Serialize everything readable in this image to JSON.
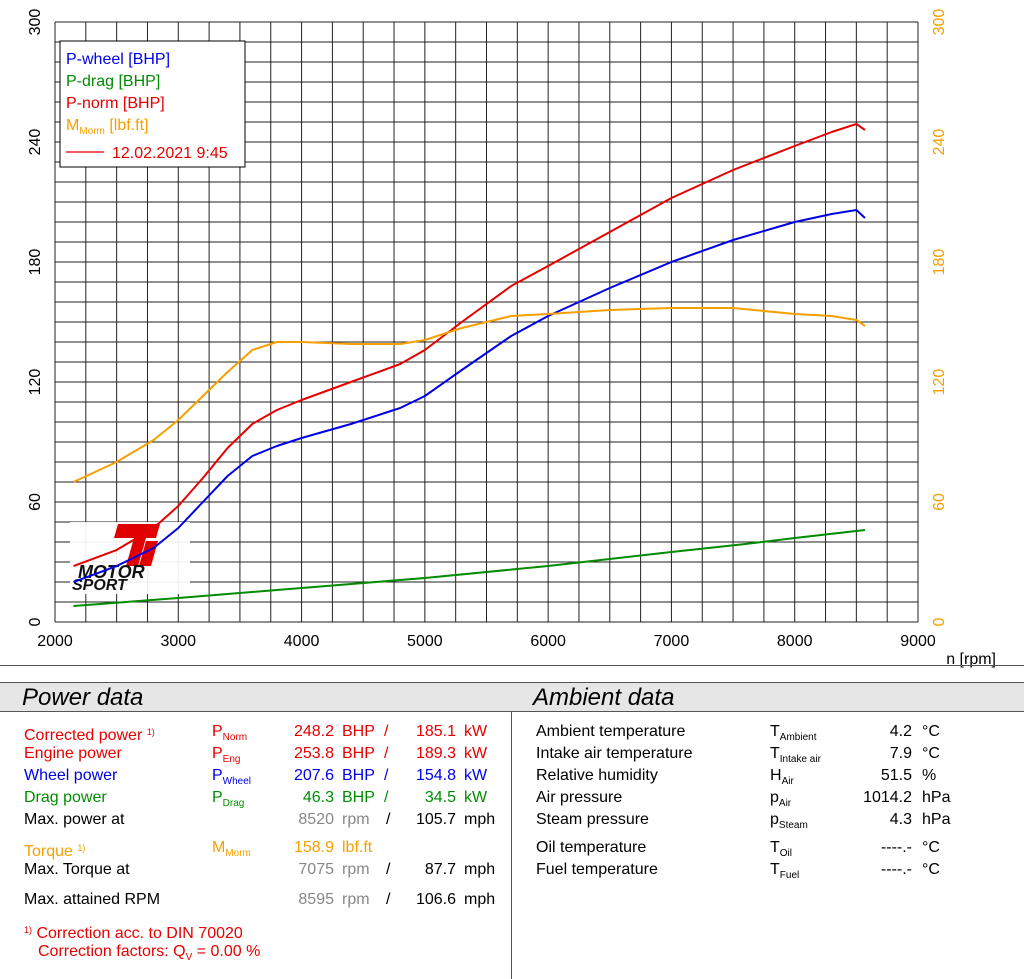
{
  "colors": {
    "wheel": "#0000e6",
    "drag": "#008c00",
    "norm": "#e60000",
    "torque": "#f5a000",
    "gray": "#888888"
  },
  "chart_data": {
    "type": "line",
    "xlabel": "n [rpm]",
    "x_ticks": [
      "2000",
      "3000",
      "4000",
      "5000",
      "6000",
      "7000",
      "8000",
      "9000"
    ],
    "y_left_ticks": [
      "0",
      "60",
      "120",
      "180",
      "240",
      "300"
    ],
    "y_right_ticks": [
      "0",
      "60",
      "120",
      "180",
      "240",
      "300"
    ],
    "xlim": [
      2000,
      9000
    ],
    "ylim": [
      0,
      300
    ],
    "grid": true,
    "legend_position": "top-left",
    "legend": {
      "wheel": "P-wheel [BHP]",
      "drag": "P-drag [BHP]",
      "norm": "P-norm [BHP]",
      "torque_main": "M",
      "torque_sub": "Morm",
      "torque_unit": " [lbf.ft]",
      "date": "12.02.2021 9:45"
    },
    "series": [
      {
        "key": "norm",
        "name": "P-norm [BHP]",
        "x": [
          2150,
          2500,
          2800,
          3000,
          3200,
          3400,
          3600,
          3800,
          4000,
          4400,
          4800,
          5000,
          5300,
          5700,
          6000,
          6500,
          7000,
          7500,
          8000,
          8300,
          8500,
          8570
        ],
        "values": [
          28,
          36,
          47,
          58,
          72,
          87,
          99,
          106,
          111,
          120,
          129,
          136,
          150,
          168,
          178,
          195,
          212,
          226,
          238,
          245,
          249,
          246
        ]
      },
      {
        "key": "wheel",
        "name": "P-wheel [BHP]",
        "x": [
          2150,
          2500,
          2800,
          3000,
          3200,
          3400,
          3600,
          3800,
          4000,
          4400,
          4800,
          5000,
          5300,
          5700,
          6000,
          6500,
          7000,
          7500,
          8000,
          8300,
          8500,
          8570
        ],
        "values": [
          20,
          28,
          37,
          47,
          60,
          73,
          83,
          88,
          92,
          99,
          107,
          113,
          126,
          143,
          153,
          167,
          180,
          191,
          200,
          204,
          206,
          202
        ]
      },
      {
        "key": "drag",
        "name": "P-drag [BHP]",
        "x": [
          2150,
          3000,
          4000,
          5000,
          6000,
          7000,
          7600,
          8000,
          8570
        ],
        "values": [
          8,
          12,
          17,
          22,
          28,
          35,
          39,
          42,
          46
        ]
      },
      {
        "key": "torque",
        "name": "MMorm [lbf.ft]",
        "x": [
          2150,
          2500,
          2800,
          3000,
          3200,
          3400,
          3600,
          3800,
          4000,
          4400,
          4800,
          5000,
          5300,
          5700,
          6000,
          6500,
          7000,
          7500,
          8000,
          8300,
          8500,
          8570
        ],
        "values": [
          70,
          80,
          91,
          101,
          113,
          125,
          136,
          140,
          140,
          139,
          139,
          141,
          147,
          153,
          154,
          156,
          157,
          157,
          154,
          153,
          151,
          148
        ]
      }
    ]
  },
  "logo": {
    "top": "Ti",
    "mid": "MOTOR",
    "bottom": "SPORT"
  },
  "power": {
    "title": "Power data",
    "corrected": {
      "label": "Corrected power",
      "sup": "1)",
      "sym": "P",
      "sub": "Norm",
      "bhp": "248.2",
      "bhp_unit": "BHP",
      "slash": "/",
      "kw": "185.1",
      "kw_unit": "kW"
    },
    "engine": {
      "label": "Engine power",
      "sym": "P",
      "sub": "Eng",
      "bhp": "253.8",
      "bhp_unit": "BHP",
      "slash": "/",
      "kw": "189.3",
      "kw_unit": "kW"
    },
    "wheel": {
      "label": "Wheel power",
      "sym": "P",
      "sub": "Wheel",
      "bhp": "207.6",
      "bhp_unit": "BHP",
      "slash": "/",
      "kw": "154.8",
      "kw_unit": "kW"
    },
    "drag": {
      "label": "Drag power",
      "sym": "P",
      "sub": "Drag",
      "bhp": "46.3",
      "bhp_unit": "BHP",
      "slash": "/",
      "kw": "34.5",
      "kw_unit": "kW"
    },
    "maxpower": {
      "label": "Max. power at",
      "rpm": "8520",
      "rpm_unit": "rpm",
      "slash": "/",
      "mph": "105.7",
      "mph_unit": "mph"
    },
    "torque": {
      "label": "Torque",
      "sup": "1)",
      "sym": "M",
      "sub": "Morm",
      "val": "158.9",
      "unit": "lbf.ft"
    },
    "maxtorque": {
      "label": "Max. Torque at",
      "rpm": "7075",
      "rpm_unit": "rpm",
      "slash": "/",
      "mph": "87.7",
      "mph_unit": "mph"
    },
    "maxrpm": {
      "label": "Max. attained RPM",
      "rpm": "8595",
      "rpm_unit": "rpm",
      "slash": "/",
      "mph": "106.6",
      "mph_unit": "mph"
    },
    "note1_sup": "1)",
    "note1": "Correction acc. to DIN 70020",
    "note2_pre": "Correction factors: Q",
    "note2_sub": "V",
    "note2_post": " =   0.00 %"
  },
  "ambient": {
    "title": "Ambient data",
    "rows": [
      {
        "label": "Ambient temperature",
        "sym": "T",
        "sub": "Ambient",
        "val": "4.2",
        "unit": "°C"
      },
      {
        "label": "Intake air temperature",
        "sym": "T",
        "sub": "Intake air",
        "val": "7.9",
        "unit": "°C"
      },
      {
        "label": "Relative humidity",
        "sym": "H",
        "sub": "Air",
        "val": "51.5",
        "unit": "%"
      },
      {
        "label": "Air pressure",
        "sym": "p",
        "sub": "Air",
        "val": "1014.2",
        "unit": "hPa"
      },
      {
        "label": "Steam pressure",
        "sym": "p",
        "sub": "Steam",
        "val": "4.3",
        "unit": "hPa"
      }
    ],
    "rows2": [
      {
        "label": "Oil temperature",
        "sym": "T",
        "sub": "Oil",
        "val": "----.-",
        "unit": "°C"
      },
      {
        "label": "Fuel temperature",
        "sym": "T",
        "sub": "Fuel",
        "val": "----.-",
        "unit": "°C"
      }
    ]
  }
}
